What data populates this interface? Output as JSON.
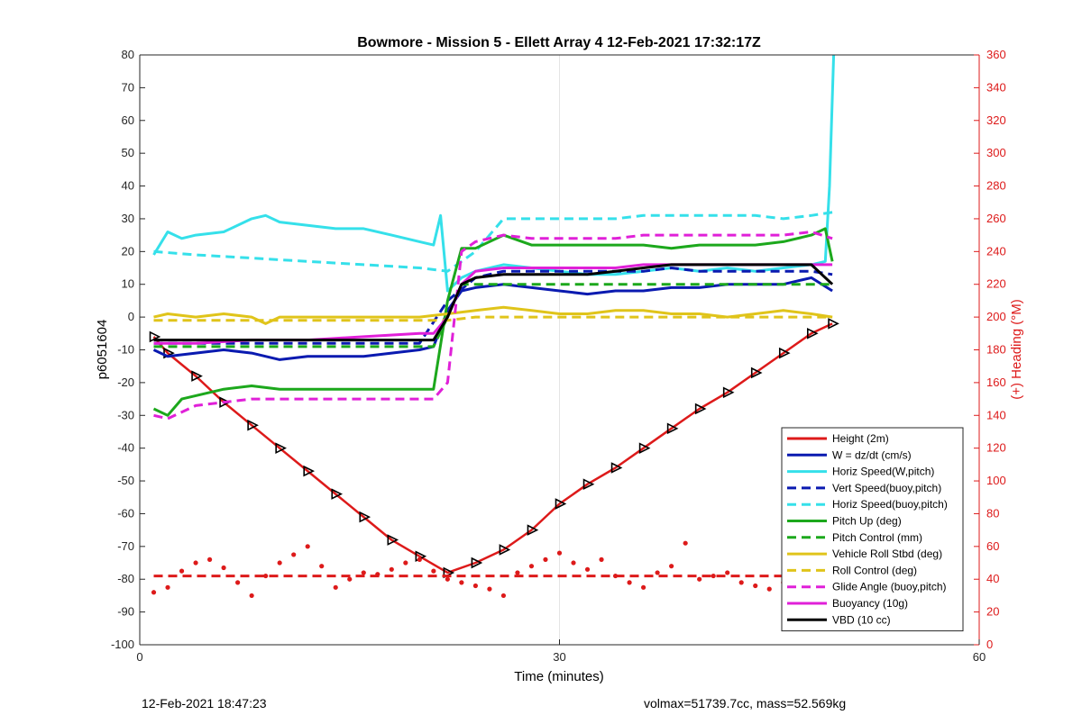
{
  "chart_data": {
    "type": "line",
    "title": "Bowmore - Mission 5 - Ellett Array 4 12-Feb-2021 17:32:17Z",
    "xlabel": "Time (minutes)",
    "ylabel": "p6051604",
    "y2label": "(+) Heading (°M)",
    "xlim": [
      0,
      60
    ],
    "ylim": [
      -100,
      80
    ],
    "y2lim": [
      0,
      360
    ],
    "xticks": [
      0,
      30,
      60
    ],
    "yticks": [
      -100,
      -90,
      -80,
      -70,
      -60,
      -50,
      -40,
      -30,
      -20,
      -10,
      0,
      10,
      20,
      30,
      40,
      50,
      60,
      70,
      80
    ],
    "y2ticks": [
      0,
      20,
      40,
      60,
      80,
      100,
      120,
      140,
      160,
      180,
      200,
      220,
      240,
      260,
      280,
      300,
      320,
      340,
      360
    ],
    "grid": "x only",
    "legend_position": "bottom-right",
    "colors": {
      "height": "#dd1a1a",
      "w": "#0a1ab0",
      "horiz_speed": "#35e0ea",
      "pitch": "#1ca81c",
      "roll": "#e0c41a",
      "glide": "#e020d8",
      "vbd": "#000000",
      "heading": "#dd1a1a"
    },
    "series": [
      {
        "name": "Height (2m)",
        "axis": "left",
        "style": "solid-markers",
        "x": [
          1,
          2,
          4,
          6,
          8,
          10,
          12,
          14,
          16,
          18,
          20,
          22,
          24,
          26,
          28,
          30,
          32,
          34,
          36,
          38,
          40,
          42,
          44,
          46,
          48,
          49.5
        ],
        "y": [
          -6,
          -11,
          -18,
          -26,
          -33,
          -40,
          -47,
          -54,
          -61,
          -68,
          -73,
          -78,
          -75,
          -71,
          -65,
          -57,
          -51,
          -46,
          -40,
          -34,
          -28,
          -23,
          -17,
          -11,
          -5,
          -2
        ]
      },
      {
        "name": "W = dz/dt (cm/s)",
        "axis": "left",
        "style": "solid",
        "x": [
          1,
          2,
          4,
          6,
          8,
          10,
          12,
          14,
          16,
          18,
          20,
          21,
          22,
          23,
          24,
          26,
          28,
          30,
          32,
          34,
          36,
          38,
          40,
          42,
          44,
          46,
          48,
          49.5
        ],
        "y": [
          -10,
          -12,
          -11,
          -10,
          -11,
          -13,
          -12,
          -12,
          -12,
          -11,
          -10,
          -9,
          2,
          8,
          9,
          10,
          9,
          8,
          7,
          8,
          8,
          9,
          9,
          10,
          10,
          10,
          12,
          8
        ]
      },
      {
        "name": "Horiz Speed(W,pitch)",
        "axis": "left",
        "style": "solid",
        "x": [
          1,
          2,
          3,
          4,
          6,
          8,
          9,
          10,
          12,
          14,
          16,
          18,
          20,
          21,
          21.5,
          22,
          23,
          24,
          26,
          28,
          30,
          32,
          34,
          36,
          38,
          40,
          42,
          44,
          46,
          48,
          49,
          49.3,
          49.6
        ],
        "y": [
          19,
          26,
          24,
          25,
          26,
          30,
          31,
          29,
          28,
          27,
          27,
          25,
          23,
          22,
          31,
          8,
          12,
          14,
          16,
          15,
          14,
          13,
          13,
          14,
          15,
          14,
          15,
          14,
          15,
          16,
          17,
          40,
          80
        ]
      },
      {
        "name": "Vert Speed(buoy,pitch)",
        "axis": "left",
        "style": "dashed",
        "x": [
          1,
          4,
          8,
          12,
          16,
          20,
          22,
          24,
          26,
          28,
          30,
          32,
          34,
          36,
          38,
          40,
          42,
          44,
          46,
          48,
          49.5
        ],
        "y": [
          -8,
          -8,
          -8,
          -8,
          -8,
          -8,
          5,
          12,
          14,
          14,
          14,
          14,
          14,
          14,
          15,
          14,
          14,
          14,
          14,
          14,
          13
        ]
      },
      {
        "name": "Horiz Speed(buoy,pitch)",
        "axis": "left",
        "style": "dashed",
        "x": [
          1,
          4,
          8,
          12,
          16,
          20,
          22,
          24,
          26,
          28,
          30,
          32,
          34,
          36,
          38,
          40,
          42,
          44,
          46,
          48,
          49.5
        ],
        "y": [
          20,
          19,
          18,
          17,
          16,
          15,
          14,
          20,
          30,
          30,
          30,
          30,
          30,
          31,
          31,
          31,
          31,
          31,
          30,
          31,
          32
        ]
      },
      {
        "name": "Pitch Up (deg)",
        "axis": "left",
        "style": "solid",
        "x": [
          1,
          2,
          3,
          4,
          6,
          8,
          10,
          12,
          14,
          16,
          18,
          20,
          21,
          22,
          23,
          24,
          26,
          28,
          30,
          32,
          34,
          36,
          38,
          40,
          42,
          44,
          46,
          48,
          49,
          49.5
        ],
        "y": [
          -28,
          -30,
          -25,
          -24,
          -22,
          -21,
          -22,
          -22,
          -22,
          -22,
          -22,
          -22,
          -22,
          5,
          21,
          21,
          25,
          22,
          22,
          22,
          22,
          22,
          21,
          22,
          22,
          22,
          23,
          25,
          27,
          17
        ]
      },
      {
        "name": "Pitch Control (mm)",
        "axis": "left",
        "style": "dashed",
        "x": [
          1,
          8,
          16,
          21,
          22,
          23,
          30,
          40,
          49.5
        ],
        "y": [
          -9,
          -9,
          -9,
          -9,
          0,
          10,
          10,
          10,
          10
        ]
      },
      {
        "name": "Vehicle Roll Stbd (deg)",
        "axis": "left",
        "style": "solid",
        "x": [
          1,
          2,
          4,
          6,
          8,
          9,
          10,
          12,
          14,
          16,
          18,
          20,
          22,
          24,
          26,
          28,
          30,
          32,
          34,
          36,
          38,
          40,
          42,
          44,
          46,
          48,
          49.5
        ],
        "y": [
          0,
          1,
          0,
          1,
          0,
          -2,
          0,
          0,
          0,
          0,
          0,
          0,
          1,
          2,
          3,
          2,
          1,
          1,
          2,
          2,
          1,
          1,
          0,
          1,
          2,
          1,
          0
        ]
      },
      {
        "name": "Roll Control (deg)",
        "axis": "left",
        "style": "dashed",
        "x": [
          1,
          2,
          4,
          6,
          8,
          10,
          12,
          14,
          16,
          18,
          20,
          22,
          24,
          26,
          28,
          30,
          32,
          34,
          36,
          38,
          40,
          42,
          44,
          46,
          48,
          49.5
        ],
        "y": [
          -1,
          -1,
          -1,
          -1,
          -1,
          -1,
          -1,
          -1,
          -1,
          -1,
          -1,
          -1,
          0,
          0,
          0,
          0,
          0,
          0,
          0,
          0,
          0,
          0,
          0,
          0,
          0,
          0
        ]
      },
      {
        "name": "Glide Angle (buoy,pitch)",
        "axis": "left",
        "style": "dashed",
        "x": [
          1,
          2,
          4,
          6,
          8,
          10,
          12,
          14,
          16,
          18,
          20,
          21,
          22,
          23,
          24,
          26,
          28,
          30,
          32,
          34,
          36,
          38,
          40,
          42,
          44,
          46,
          48,
          49.5
        ],
        "y": [
          -30,
          -31,
          -27,
          -26,
          -25,
          -25,
          -25,
          -25,
          -25,
          -25,
          -25,
          -25,
          -20,
          20,
          23,
          25,
          24,
          24,
          24,
          24,
          25,
          25,
          25,
          25,
          25,
          25,
          26,
          24
        ]
      },
      {
        "name": "Buoyancy (10g)",
        "axis": "left",
        "style": "solid",
        "x": [
          1,
          4,
          8,
          12,
          16,
          20,
          21,
          22,
          23,
          24,
          26,
          28,
          30,
          32,
          34,
          36,
          38,
          40,
          42,
          44,
          46,
          48,
          49.5
        ],
        "y": [
          -8,
          -8,
          -7,
          -7,
          -6,
          -5,
          -5,
          0,
          10,
          14,
          15,
          15,
          15,
          15,
          15,
          16,
          16,
          16,
          16,
          16,
          16,
          16,
          16
        ]
      },
      {
        "name": "VBD (10 cc)",
        "axis": "left",
        "style": "solid",
        "x": [
          1,
          4,
          8,
          12,
          16,
          20,
          21,
          22,
          23,
          24,
          26,
          28,
          30,
          32,
          34,
          36,
          38,
          40,
          42,
          44,
          46,
          48,
          49.5
        ],
        "y": [
          -7,
          -7,
          -7,
          -7,
          -7,
          -7,
          -7,
          0,
          10,
          12,
          13,
          13,
          13,
          13,
          14,
          15,
          16,
          16,
          16,
          16,
          16,
          16,
          10
        ]
      },
      {
        "name": "Heading",
        "axis": "right",
        "style": "dotted",
        "x": [
          1,
          2,
          3,
          4,
          5,
          6,
          7,
          8,
          9,
          10,
          11,
          12,
          13,
          14,
          15,
          16,
          17,
          18,
          19,
          20,
          21,
          22,
          23,
          24,
          25,
          26,
          27,
          28,
          29,
          30,
          31,
          32,
          33,
          34,
          35,
          36,
          37,
          38,
          39,
          40,
          41,
          42,
          43,
          44,
          45,
          46,
          47,
          48,
          49
        ],
        "y": [
          32,
          35,
          45,
          50,
          52,
          47,
          38,
          30,
          42,
          50,
          55,
          60,
          48,
          35,
          40,
          44,
          43,
          46,
          50,
          52,
          45,
          40,
          38,
          36,
          34,
          30,
          44,
          48,
          52,
          56,
          50,
          46,
          52,
          42,
          38,
          35,
          44,
          48,
          62,
          40,
          42,
          44,
          38,
          36,
          34,
          38,
          35,
          36,
          32
        ]
      },
      {
        "name": "Heading target",
        "axis": "right",
        "style": "dashed",
        "x": [
          1,
          49.5
        ],
        "y": [
          42,
          42
        ]
      }
    ],
    "legend": [
      "Height (2m)",
      "W = dz/dt (cm/s)",
      "Horiz Speed(W,pitch)",
      "Vert Speed(buoy,pitch)",
      "Horiz Speed(buoy,pitch)",
      "Pitch Up (deg)",
      "Pitch Control (mm)",
      "Vehicle Roll Stbd (deg)",
      "Roll Control (deg)",
      "Glide Angle (buoy,pitch)",
      "Buoyancy (10g)",
      "VBD (10 cc)"
    ]
  },
  "footer": {
    "timestamp": "12-Feb-2021 18:47:23",
    "stats": "volmax=51739.7cc, mass=52.569kg"
  }
}
